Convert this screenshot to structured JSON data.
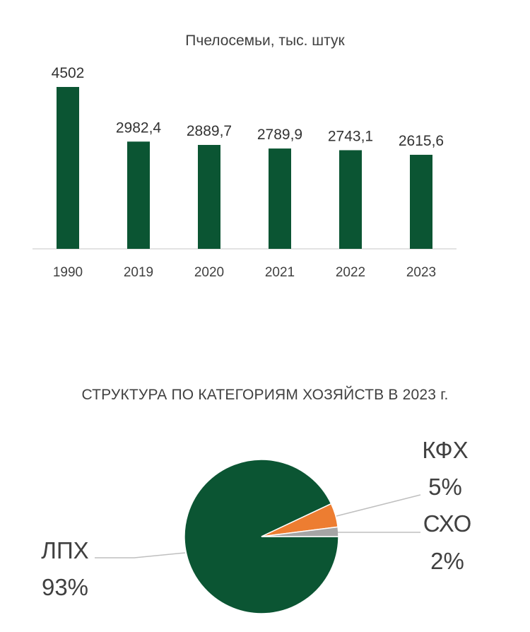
{
  "colors": {
    "bar": "#0b5533",
    "pie_lph": "#0b5533",
    "pie_kfh": "#ed7d31",
    "pie_sho": "#a5a5a5",
    "axis": "#d9d9d9",
    "text": "#404040",
    "leader": "#bfbfbf"
  },
  "chart_data": [
    {
      "type": "bar",
      "title": "Пчелосемьи, тыс. штук",
      "categories": [
        "1990",
        "2019",
        "2020",
        "2021",
        "2022",
        "2023"
      ],
      "values": [
        4502,
        2982.4,
        2889.7,
        2789.9,
        2743.1,
        2615.6
      ],
      "value_labels": [
        "4502",
        "2982,4",
        "2889,7",
        "2789,9",
        "2743,1",
        "2615,6"
      ],
      "ylim": [
        0,
        4502
      ],
      "grid": false,
      "legend": "none"
    },
    {
      "type": "pie",
      "title": "СТРУКТУРА ПО КАТЕГОРИЯМ ХОЗЯЙСТВ В 2023 г.",
      "slices": [
        {
          "name": "ЛПХ",
          "value": 93,
          "label": "93%",
          "color": "#0b5533"
        },
        {
          "name": "КФХ",
          "value": 5,
          "label": "5%",
          "color": "#ed7d31"
        },
        {
          "name": "СХО",
          "value": 2,
          "label": "2%",
          "color": "#a5a5a5"
        }
      ],
      "legend": "none"
    }
  ]
}
